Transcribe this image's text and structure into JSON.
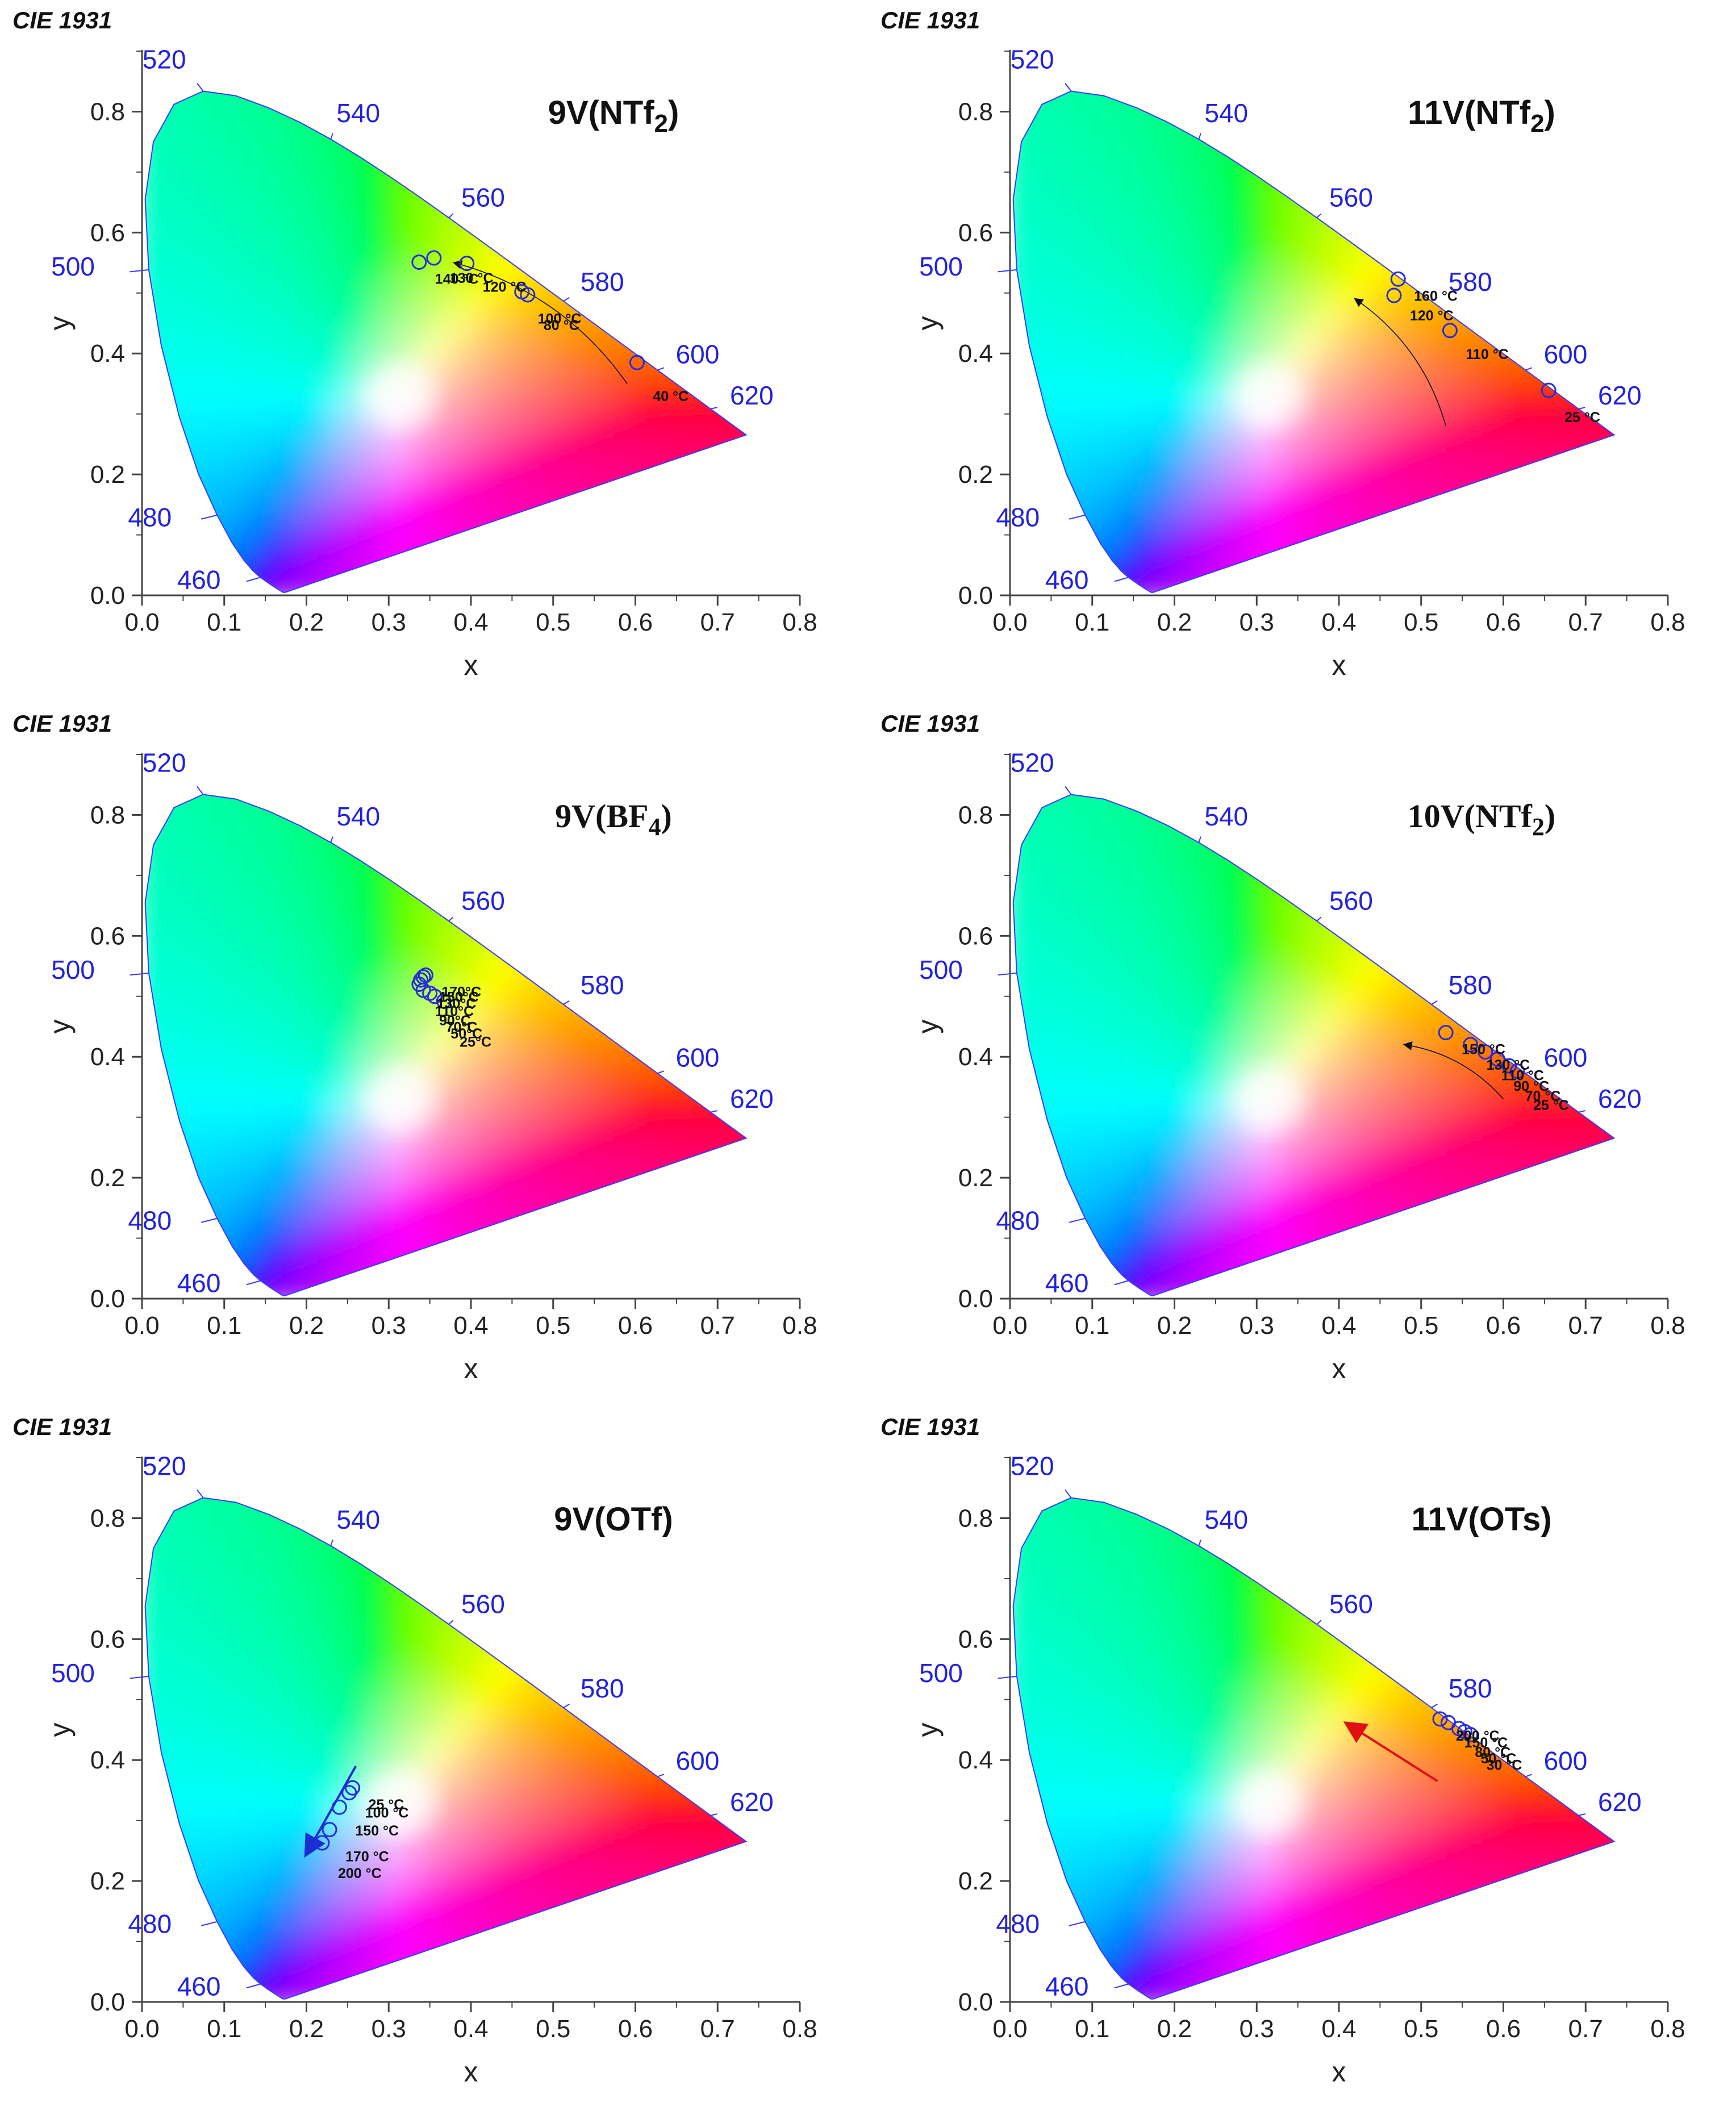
{
  "figure_tag": "CIE 1931",
  "chart_data": [
    {
      "type": "scatter",
      "title": "9V(NTf2)",
      "title_main": "9V(NTf",
      "title_sub": "2",
      "title_end": ")",
      "title_font": "sans",
      "xlabel": "x",
      "ylabel": "y",
      "xlim": [
        0,
        0.8
      ],
      "ylim": [
        0,
        0.9
      ],
      "points": [
        {
          "x": 0.337,
          "y": 0.551,
          "label": "140 °C"
        },
        {
          "x": 0.355,
          "y": 0.558,
          "label": "130 °C"
        },
        {
          "x": 0.395,
          "y": 0.549,
          "label": "120 °C"
        },
        {
          "x": 0.462,
          "y": 0.502,
          "label": "100 °C"
        },
        {
          "x": 0.469,
          "y": 0.497,
          "label": "80 °C"
        },
        {
          "x": 0.602,
          "y": 0.385,
          "label": "40 °C"
        }
      ],
      "arrow": {
        "from": [
          0.59,
          0.35
        ],
        "to": [
          0.38,
          0.55
        ],
        "color": "#111111",
        "curved": true
      }
    },
    {
      "type": "scatter",
      "title": "11V(NTf2)",
      "title_main": "11V(NTf",
      "title_sub": "2",
      "title_end": ")",
      "title_font": "sans",
      "xlabel": "x",
      "ylabel": "y",
      "xlim": [
        0,
        0.8
      ],
      "ylim": [
        0,
        0.9
      ],
      "points": [
        {
          "x": 0.472,
          "y": 0.523,
          "label": "160 °C"
        },
        {
          "x": 0.467,
          "y": 0.496,
          "label": "120 °C"
        },
        {
          "x": 0.535,
          "y": 0.438,
          "label": "110 °C"
        },
        {
          "x": 0.655,
          "y": 0.339,
          "label": "25 °C"
        }
      ],
      "arrow": {
        "from": [
          0.53,
          0.28
        ],
        "to": [
          0.42,
          0.49
        ],
        "color": "#111111",
        "curved": true
      }
    },
    {
      "type": "scatter",
      "title": "9V(BF4)",
      "title_main": "9V(BF",
      "title_sub": "4",
      "title_end": ")",
      "title_font": "serif",
      "xlabel": "x",
      "ylabel": "y",
      "xlim": [
        0,
        0.8
      ],
      "ylim": [
        0,
        0.9
      ],
      "points": [
        {
          "x": 0.345,
          "y": 0.535,
          "label": "170°C"
        },
        {
          "x": 0.342,
          "y": 0.532,
          "label": "150°C"
        },
        {
          "x": 0.339,
          "y": 0.527,
          "label": "130°C"
        },
        {
          "x": 0.337,
          "y": 0.52,
          "label": "110°C"
        },
        {
          "x": 0.342,
          "y": 0.51,
          "label": "90°C"
        },
        {
          "x": 0.35,
          "y": 0.505,
          "label": "70°C"
        },
        {
          "x": 0.356,
          "y": 0.5,
          "label": "50°C"
        },
        {
          "x": 0.367,
          "y": 0.492,
          "label": "25°C"
        }
      ],
      "arrow": null
    },
    {
      "type": "scatter",
      "title": "10V(NTf2)",
      "title_main": "10V(NTf",
      "title_sub": "2",
      "title_end": ")",
      "title_font": "serif",
      "xlabel": "x",
      "ylabel": "y",
      "xlim": [
        0,
        0.8
      ],
      "ylim": [
        0,
        0.9
      ],
      "points": [
        {
          "x": 0.53,
          "y": 0.44,
          "label": "150 °C"
        },
        {
          "x": 0.56,
          "y": 0.42,
          "label": "130 °C"
        },
        {
          "x": 0.578,
          "y": 0.408,
          "label": "110 °C"
        },
        {
          "x": 0.593,
          "y": 0.396,
          "label": "90 °C"
        },
        {
          "x": 0.607,
          "y": 0.385,
          "label": "70 °C"
        },
        {
          "x": 0.617,
          "y": 0.376,
          "label": "25 °C"
        }
      ],
      "arrow": {
        "from": [
          0.6,
          0.33
        ],
        "to": [
          0.48,
          0.42
        ],
        "color": "#111111",
        "curved": true
      }
    },
    {
      "type": "scatter",
      "title": "9V(OTf)",
      "title_main": "9V(OTf)",
      "title_sub": "",
      "title_end": "",
      "title_font": "sans",
      "xlabel": "x",
      "ylabel": "y",
      "xlim": [
        0,
        0.8
      ],
      "ylim": [
        0,
        0.9
      ],
      "points": [
        {
          "x": 0.256,
          "y": 0.354,
          "label": "25 °C"
        },
        {
          "x": 0.252,
          "y": 0.346,
          "label": "100 °C"
        },
        {
          "x": 0.24,
          "y": 0.322,
          "label": "150 °C"
        },
        {
          "x": 0.228,
          "y": 0.285,
          "label": "170 °C"
        },
        {
          "x": 0.219,
          "y": 0.263,
          "label": "200 °C"
        }
      ],
      "arrow": {
        "from": [
          0.26,
          0.39
        ],
        "to": [
          0.2,
          0.245
        ],
        "color": "#1a2fd0",
        "curved": false
      }
    },
    {
      "type": "scatter",
      "title": "11V(OTs)",
      "title_main": "11V(OTs)",
      "title_sub": "",
      "title_end": "",
      "title_font": "sans",
      "xlabel": "x",
      "ylabel": "y",
      "xlim": [
        0,
        0.8
      ],
      "ylim": [
        0,
        0.9
      ],
      "points": [
        {
          "x": 0.523,
          "y": 0.468,
          "label": "200 °C"
        },
        {
          "x": 0.533,
          "y": 0.462,
          "label": "150 °C"
        },
        {
          "x": 0.546,
          "y": 0.452,
          "label": "80 °C"
        },
        {
          "x": 0.553,
          "y": 0.447,
          "label": "50 °C"
        },
        {
          "x": 0.56,
          "y": 0.442,
          "label": "30 °C"
        }
      ],
      "arrow": {
        "from": [
          0.52,
          0.365
        ],
        "to": [
          0.41,
          0.46
        ],
        "color": "#e01010",
        "curved": false
      }
    }
  ],
  "axes": {
    "xticks": [
      "0.0",
      "0.1",
      "0.2",
      "0.3",
      "0.4",
      "0.5",
      "0.6",
      "0.7",
      "0.8"
    ],
    "yticks": [
      "0.0",
      "0.2",
      "0.4",
      "0.6",
      "0.8"
    ],
    "wavelength_labels": [
      "460",
      "480",
      "500",
      "520",
      "540",
      "560",
      "580",
      "600",
      "620"
    ]
  }
}
